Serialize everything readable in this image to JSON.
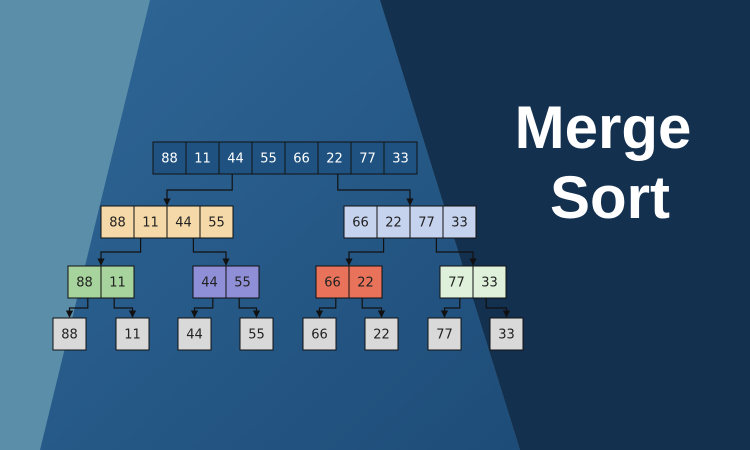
{
  "title": {
    "lines": [
      "Merge",
      "Sort"
    ]
  },
  "levels": [
    [
      [
        88,
        11,
        44,
        55,
        66,
        22,
        77,
        33
      ]
    ],
    [
      [
        88,
        11,
        44,
        55
      ],
      [
        66,
        22,
        77,
        33
      ]
    ],
    [
      [
        88,
        11
      ],
      [
        44,
        55
      ],
      [
        66,
        22
      ],
      [
        77,
        33
      ]
    ],
    [
      [
        88
      ],
      [
        11
      ],
      [
        44
      ],
      [
        55
      ],
      [
        66
      ],
      [
        22
      ],
      [
        77
      ],
      [
        33
      ]
    ]
  ]
}
